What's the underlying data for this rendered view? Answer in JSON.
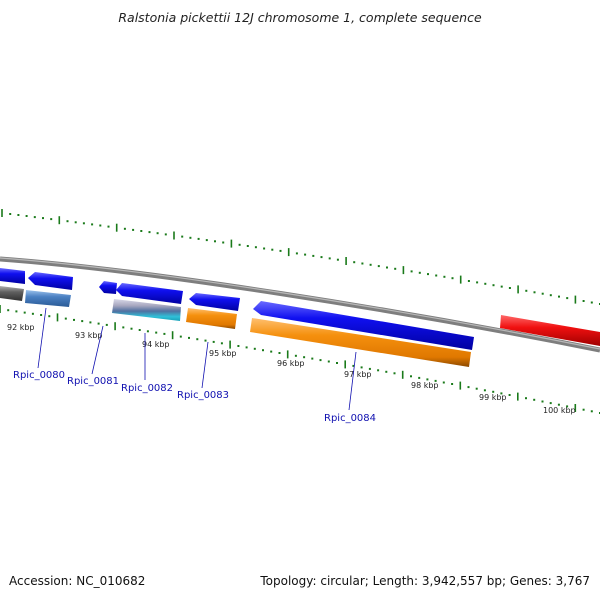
{
  "title": "Ralstonia pickettii 12J chromosome 1, complete sequence",
  "footer": {
    "accession": "Accession: NC_010682",
    "summary": "Topology: circular; Length: 3,942,557 bp; Genes: 3,767"
  },
  "kbp_labels": [
    "92 kbp",
    "93 kbp",
    "94 kbp",
    "95 kbp",
    "96 kbp",
    "97 kbp",
    "98 kbp",
    "99 kbp",
    "100 kbp"
  ],
  "gene_labels": [
    "Rpic_0080",
    "Rpic_0081",
    "Rpic_0082",
    "Rpic_0083",
    "Rpic_0084"
  ],
  "colors": {
    "backbone": "#808080",
    "cds": "#1010e0",
    "gene": "#4a7fc0",
    "orange": "#f08c1c",
    "red": "#e01010",
    "tick": "#1a7a1a",
    "cyan": "#20c8d0"
  }
}
